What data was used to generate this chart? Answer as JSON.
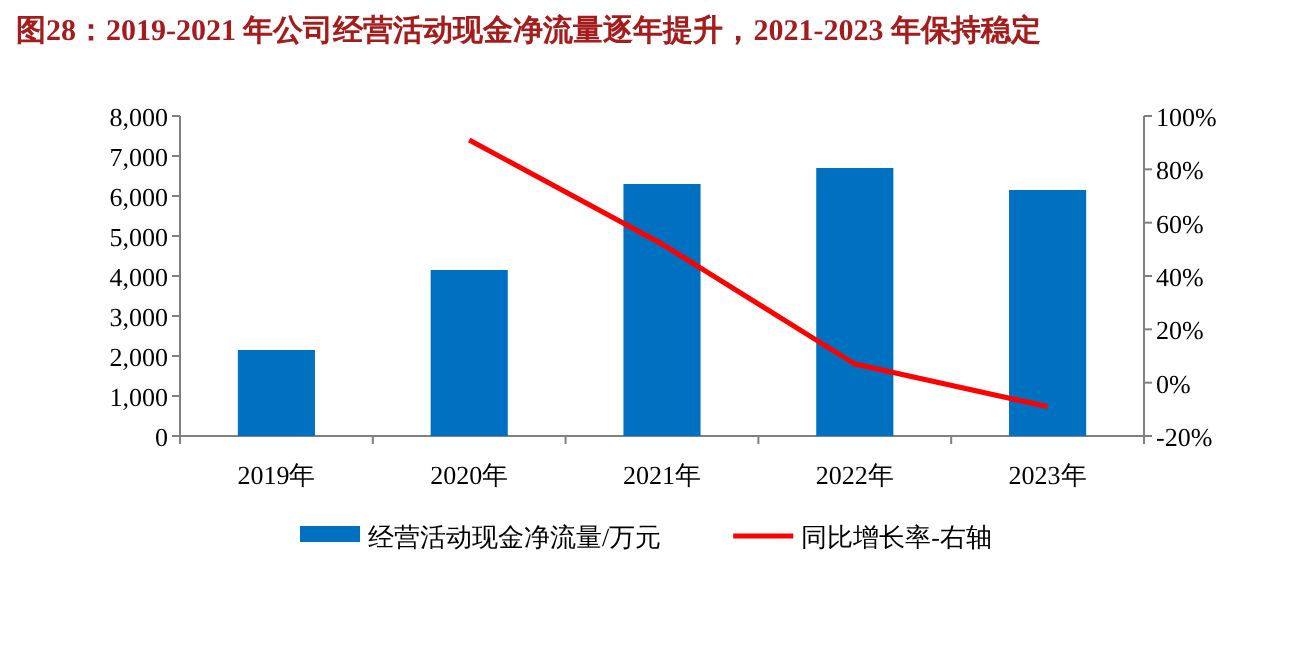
{
  "chart_data": {
    "type": "bar",
    "title": "图28：2019-2021 年公司经营活动现金净流量逐年提升，2021-2023 年保持稳定",
    "categories": [
      "2019年",
      "2020年",
      "2021年",
      "2022年",
      "2023年"
    ],
    "series": [
      {
        "name": "经营活动现金净流量/万元",
        "color": "#0070c0",
        "values": [
          2150,
          4150,
          6300,
          6700,
          6150
        ]
      },
      {
        "name": "同比增长率-右轴",
        "type": "line",
        "axis": "y2",
        "color": "#ff0000",
        "values": [
          null,
          91,
          52,
          7,
          -9
        ]
      }
    ],
    "ylim": [
      0,
      8000
    ],
    "yticks": [
      {
        "value": 0,
        "label": "0"
      },
      {
        "value": 1000,
        "label": "1,000"
      },
      {
        "value": 2000,
        "label": "2,000"
      },
      {
        "value": 3000,
        "label": "3,000"
      },
      {
        "value": 4000,
        "label": "4,000"
      },
      {
        "value": 5000,
        "label": "5,000"
      },
      {
        "value": 6000,
        "label": "6,000"
      },
      {
        "value": 7000,
        "label": "7,000"
      },
      {
        "value": 8000,
        "label": "8,000"
      }
    ],
    "y2lim": [
      -20,
      100
    ],
    "y2ticks": [
      {
        "value": -20,
        "label": "-20%"
      },
      {
        "value": 0,
        "label": "0%"
      },
      {
        "value": 20,
        "label": "20%"
      },
      {
        "value": 40,
        "label": "40%"
      },
      {
        "value": 60,
        "label": "60%"
      },
      {
        "value": 80,
        "label": "80%"
      },
      {
        "value": 100,
        "label": "100%"
      }
    ],
    "grid": false,
    "legend": "bottom",
    "marker": "none",
    "line_style": "solid"
  }
}
